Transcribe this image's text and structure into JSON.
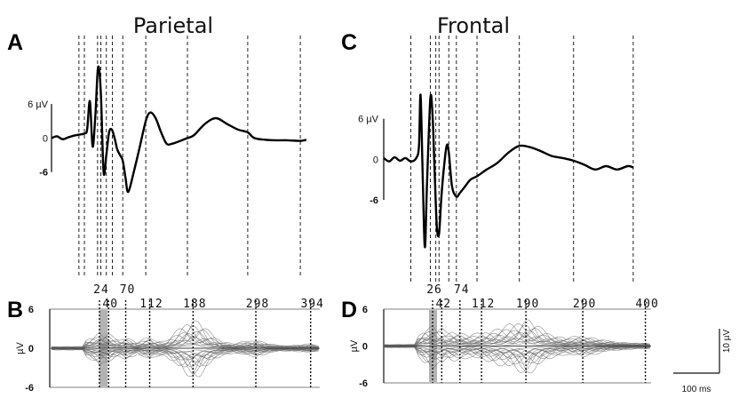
{
  "panels": {
    "A": {
      "label": "A",
      "title": "Parietal"
    },
    "B": {
      "label": "B"
    },
    "C": {
      "label": "C",
      "title": "Frontal"
    },
    "D": {
      "label": "D"
    }
  },
  "butterfly_axis": {
    "ylabel": "µV",
    "yticks": [
      "6",
      "0",
      "-6"
    ]
  },
  "scale_bar": {
    "vertical": "10 µV",
    "horizontal": "100 ms"
  },
  "chart_data": [
    {
      "type": "line",
      "panel": "A",
      "title": "Parietal",
      "ylabel": "",
      "ytick_labels": [
        "6 µV",
        "0",
        "-6"
      ],
      "ylim": [
        -12,
        14
      ],
      "xlim": [
        -60,
        410
      ],
      "x": [
        -60,
        -50,
        -40,
        -30,
        -20,
        -10,
        0,
        5,
        10,
        15,
        20,
        25,
        30,
        35,
        40,
        45,
        50,
        55,
        60,
        65,
        70,
        75,
        80,
        90,
        100,
        112,
        120,
        130,
        140,
        150,
        160,
        175,
        188,
        200,
        220,
        240,
        260,
        280,
        298,
        310,
        330,
        350,
        370,
        394,
        405
      ],
      "y": [
        0,
        0.3,
        -0.2,
        0.1,
        0.4,
        0.6,
        0.8,
        1.5,
        6.5,
        -1.5,
        4.0,
        12.5,
        8.0,
        -6.0,
        -3.0,
        1.0,
        1.5,
        0,
        -2.0,
        -3.0,
        -4.0,
        -7.0,
        -9.5,
        -6.0,
        -2.0,
        3.0,
        4.5,
        3.5,
        1.0,
        -1.0,
        -1.0,
        -0.5,
        0,
        0.5,
        2.5,
        3.5,
        2.5,
        1.5,
        1.0,
        0,
        -0.3,
        -0.4,
        -0.4,
        -0.5,
        -0.3
      ],
      "marker_latencies": [
        -10,
        0,
        24,
        30,
        40,
        51,
        70,
        112,
        188,
        298,
        394
      ]
    },
    {
      "type": "line",
      "panel": "B",
      "ylabel": "µV",
      "yticks": [
        6,
        0,
        -6
      ],
      "ylim": [
        -6,
        6
      ],
      "xlim": [
        -60,
        410
      ],
      "peak_labels": [
        "24",
        "40",
        "70",
        "112",
        "188",
        "298",
        "394"
      ],
      "peak_latencies": [
        24,
        40,
        70,
        112,
        188,
        298,
        394
      ],
      "envelope_x": [
        -60,
        -5,
        0,
        10,
        20,
        24,
        30,
        40,
        50,
        60,
        70,
        80,
        90,
        100,
        112,
        120,
        140,
        160,
        175,
        188,
        200,
        220,
        240,
        260,
        280,
        298,
        320,
        340,
        360,
        380,
        394,
        410
      ],
      "envelope_y": [
        0.3,
        0.3,
        1.5,
        2.0,
        2.5,
        2.8,
        2.2,
        2.5,
        1.8,
        1.5,
        2.0,
        1.5,
        1.0,
        1.5,
        2.0,
        1.5,
        1.2,
        3.0,
        4.5,
        5.2,
        4.5,
        2.5,
        1.2,
        0.8,
        1.2,
        1.5,
        0.8,
        0.5,
        0.5,
        0.6,
        0.8,
        0.4
      ]
    },
    {
      "type": "line",
      "panel": "C",
      "title": "Frontal",
      "ylabel": "",
      "ytick_labels": [
        "6 µV",
        "0",
        "-6"
      ],
      "ylim": [
        -14,
        12
      ],
      "xlim": [
        -60,
        410
      ],
      "x": [
        -60,
        -50,
        -40,
        -30,
        -20,
        -10,
        0,
        5,
        8,
        12,
        16,
        20,
        26,
        30,
        34,
        38,
        42,
        46,
        50,
        56,
        60,
        66,
        74,
        80,
        90,
        100,
        112,
        130,
        150,
        170,
        190,
        210,
        230,
        250,
        270,
        290,
        310,
        330,
        350,
        370,
        390,
        400
      ],
      "y": [
        0.2,
        -0.3,
        0.3,
        -0.2,
        0.2,
        -0.3,
        0.2,
        2.0,
        9.5,
        -3.0,
        -13.0,
        -3.0,
        9.0,
        6.5,
        -2.0,
        -10.0,
        -11.0,
        -6.0,
        -2.0,
        2.0,
        1.0,
        -4.0,
        -5.5,
        -5.0,
        -4.0,
        -3.0,
        -2.5,
        -1.5,
        -0.5,
        1.0,
        2.0,
        1.8,
        1.2,
        0.5,
        0.2,
        -0.2,
        -0.8,
        -1.5,
        -1.0,
        -1.5,
        -1.0,
        -1.2
      ],
      "marker_latencies": [
        -10,
        26,
        36,
        42,
        60,
        74,
        112,
        190,
        290,
        400
      ]
    },
    {
      "type": "line",
      "panel": "D",
      "ylabel": "µV",
      "yticks": [
        6,
        0,
        -6
      ],
      "ylim": [
        -6,
        6
      ],
      "xlim": [
        -60,
        410
      ],
      "peak_labels": [
        "26",
        "42",
        "74",
        "112",
        "190",
        "290",
        "400"
      ],
      "peak_latencies": [
        26,
        42,
        74,
        112,
        190,
        290,
        400
      ],
      "envelope_x": [
        -60,
        -5,
        0,
        10,
        20,
        26,
        35,
        42,
        50,
        60,
        74,
        90,
        100,
        112,
        130,
        150,
        170,
        180,
        190,
        200,
        220,
        240,
        260,
        280,
        290,
        310,
        330,
        350,
        370,
        390,
        400,
        410
      ],
      "envelope_y": [
        0.3,
        0.3,
        1.8,
        3.0,
        3.5,
        3.8,
        3.0,
        3.2,
        2.5,
        2.8,
        2.5,
        2.0,
        2.2,
        2.5,
        3.0,
        3.5,
        4.2,
        4.8,
        5.2,
        4.5,
        3.0,
        2.0,
        1.5,
        1.8,
        2.0,
        1.5,
        1.0,
        0.8,
        0.6,
        0.5,
        0.6,
        0.4
      ]
    }
  ]
}
